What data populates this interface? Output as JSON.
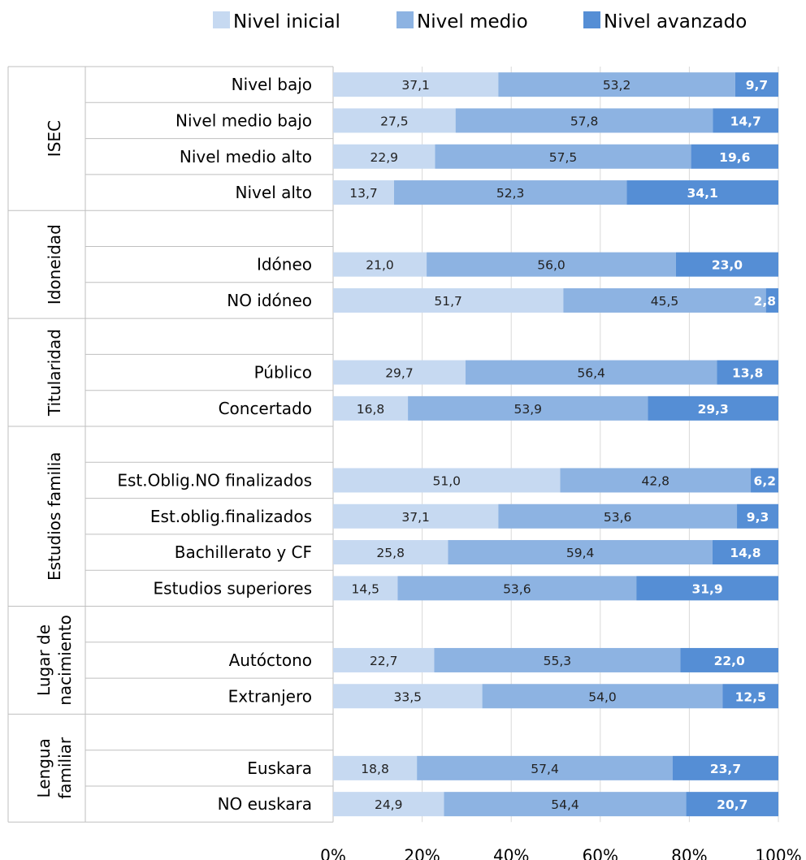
{
  "chart_data": {
    "type": "bar",
    "stacked": "percent",
    "orientation": "horizontal",
    "series": [
      {
        "name": "Nivel inicial",
        "color": "#c6d9f1"
      },
      {
        "name": "Nivel medio",
        "color": "#8db3e2"
      },
      {
        "name": "Nivel avanzado",
        "color": "#558ed5"
      }
    ],
    "x_ticks": [
      "0%",
      "20%",
      "40%",
      "60%",
      "80%",
      "100%"
    ],
    "xlim": [
      0,
      100
    ],
    "grid": true,
    "legend_position": "top",
    "groups": [
      {
        "label": "ISEC",
        "rows": [
          {
            "label": "Nivel bajo",
            "values": [
              37.1,
              53.2,
              9.7
            ],
            "labels": [
              "37,1",
              "53,2",
              "9,7"
            ]
          },
          {
            "label": "Nivel medio bajo",
            "values": [
              27.5,
              57.8,
              14.7
            ],
            "labels": [
              "27,5",
              "57,8",
              "14,7"
            ]
          },
          {
            "label": "Nivel medio alto",
            "values": [
              22.9,
              57.5,
              19.6
            ],
            "labels": [
              "22,9",
              "57,5",
              "19,6"
            ]
          },
          {
            "label": "Nivel alto",
            "values": [
              13.7,
              52.3,
              34.1
            ],
            "labels": [
              "13,7",
              "52,3",
              "34,1"
            ]
          }
        ]
      },
      {
        "label": "Idoneidad",
        "rows": [
          null,
          {
            "label": "Idóneo",
            "values": [
              21.0,
              56.0,
              23.0
            ],
            "labels": [
              "21,0",
              "56,0",
              "23,0"
            ]
          },
          {
            "label": "NO idóneo",
            "values": [
              51.7,
              45.5,
              2.8
            ],
            "labels": [
              "51,7",
              "45,5",
              "2,8"
            ]
          }
        ]
      },
      {
        "label": "Titularidad",
        "rows": [
          null,
          {
            "label": "Público",
            "values": [
              29.7,
              56.4,
              13.8
            ],
            "labels": [
              "29,7",
              "56,4",
              "13,8"
            ]
          },
          {
            "label": "Concertado",
            "values": [
              16.8,
              53.9,
              29.3
            ],
            "labels": [
              "16,8",
              "53,9",
              "29,3"
            ]
          }
        ]
      },
      {
        "label": "Estudios familia",
        "rows": [
          null,
          {
            "label": "Est.Oblig.NO finalizados",
            "values": [
              51.0,
              42.8,
              6.2
            ],
            "labels": [
              "51,0",
              "42,8",
              "6,2"
            ]
          },
          {
            "label": "Est.oblig.finalizados",
            "values": [
              37.1,
              53.6,
              9.3
            ],
            "labels": [
              "37,1",
              "53,6",
              "9,3"
            ]
          },
          {
            "label": "Bachillerato y CF",
            "values": [
              25.8,
              59.4,
              14.8
            ],
            "labels": [
              "25,8",
              "59,4",
              "14,8"
            ]
          },
          {
            "label": "Estudios superiores",
            "values": [
              14.5,
              53.6,
              31.9
            ],
            "labels": [
              "14,5",
              "53,6",
              "31,9"
            ]
          }
        ]
      },
      {
        "label": [
          "Lugar de",
          "nacimiento"
        ],
        "rows": [
          null,
          {
            "label": "Autóctono",
            "values": [
              22.7,
              55.3,
              22.0
            ],
            "labels": [
              "22,7",
              "55,3",
              "22,0"
            ]
          },
          {
            "label": "Extranjero",
            "values": [
              33.5,
              54.0,
              12.5
            ],
            "labels": [
              "33,5",
              "54,0",
              "12,5"
            ]
          }
        ]
      },
      {
        "label": [
          "Lengua",
          "familiar"
        ],
        "rows": [
          null,
          {
            "label": "Euskara",
            "values": [
              18.8,
              57.4,
              23.7
            ],
            "labels": [
              "18,8",
              "57,4",
              "23,7"
            ]
          },
          {
            "label": "NO euskara",
            "values": [
              24.9,
              54.4,
              20.7
            ],
            "labels": [
              "24,9",
              "54,4",
              "20,7"
            ]
          }
        ]
      }
    ]
  }
}
